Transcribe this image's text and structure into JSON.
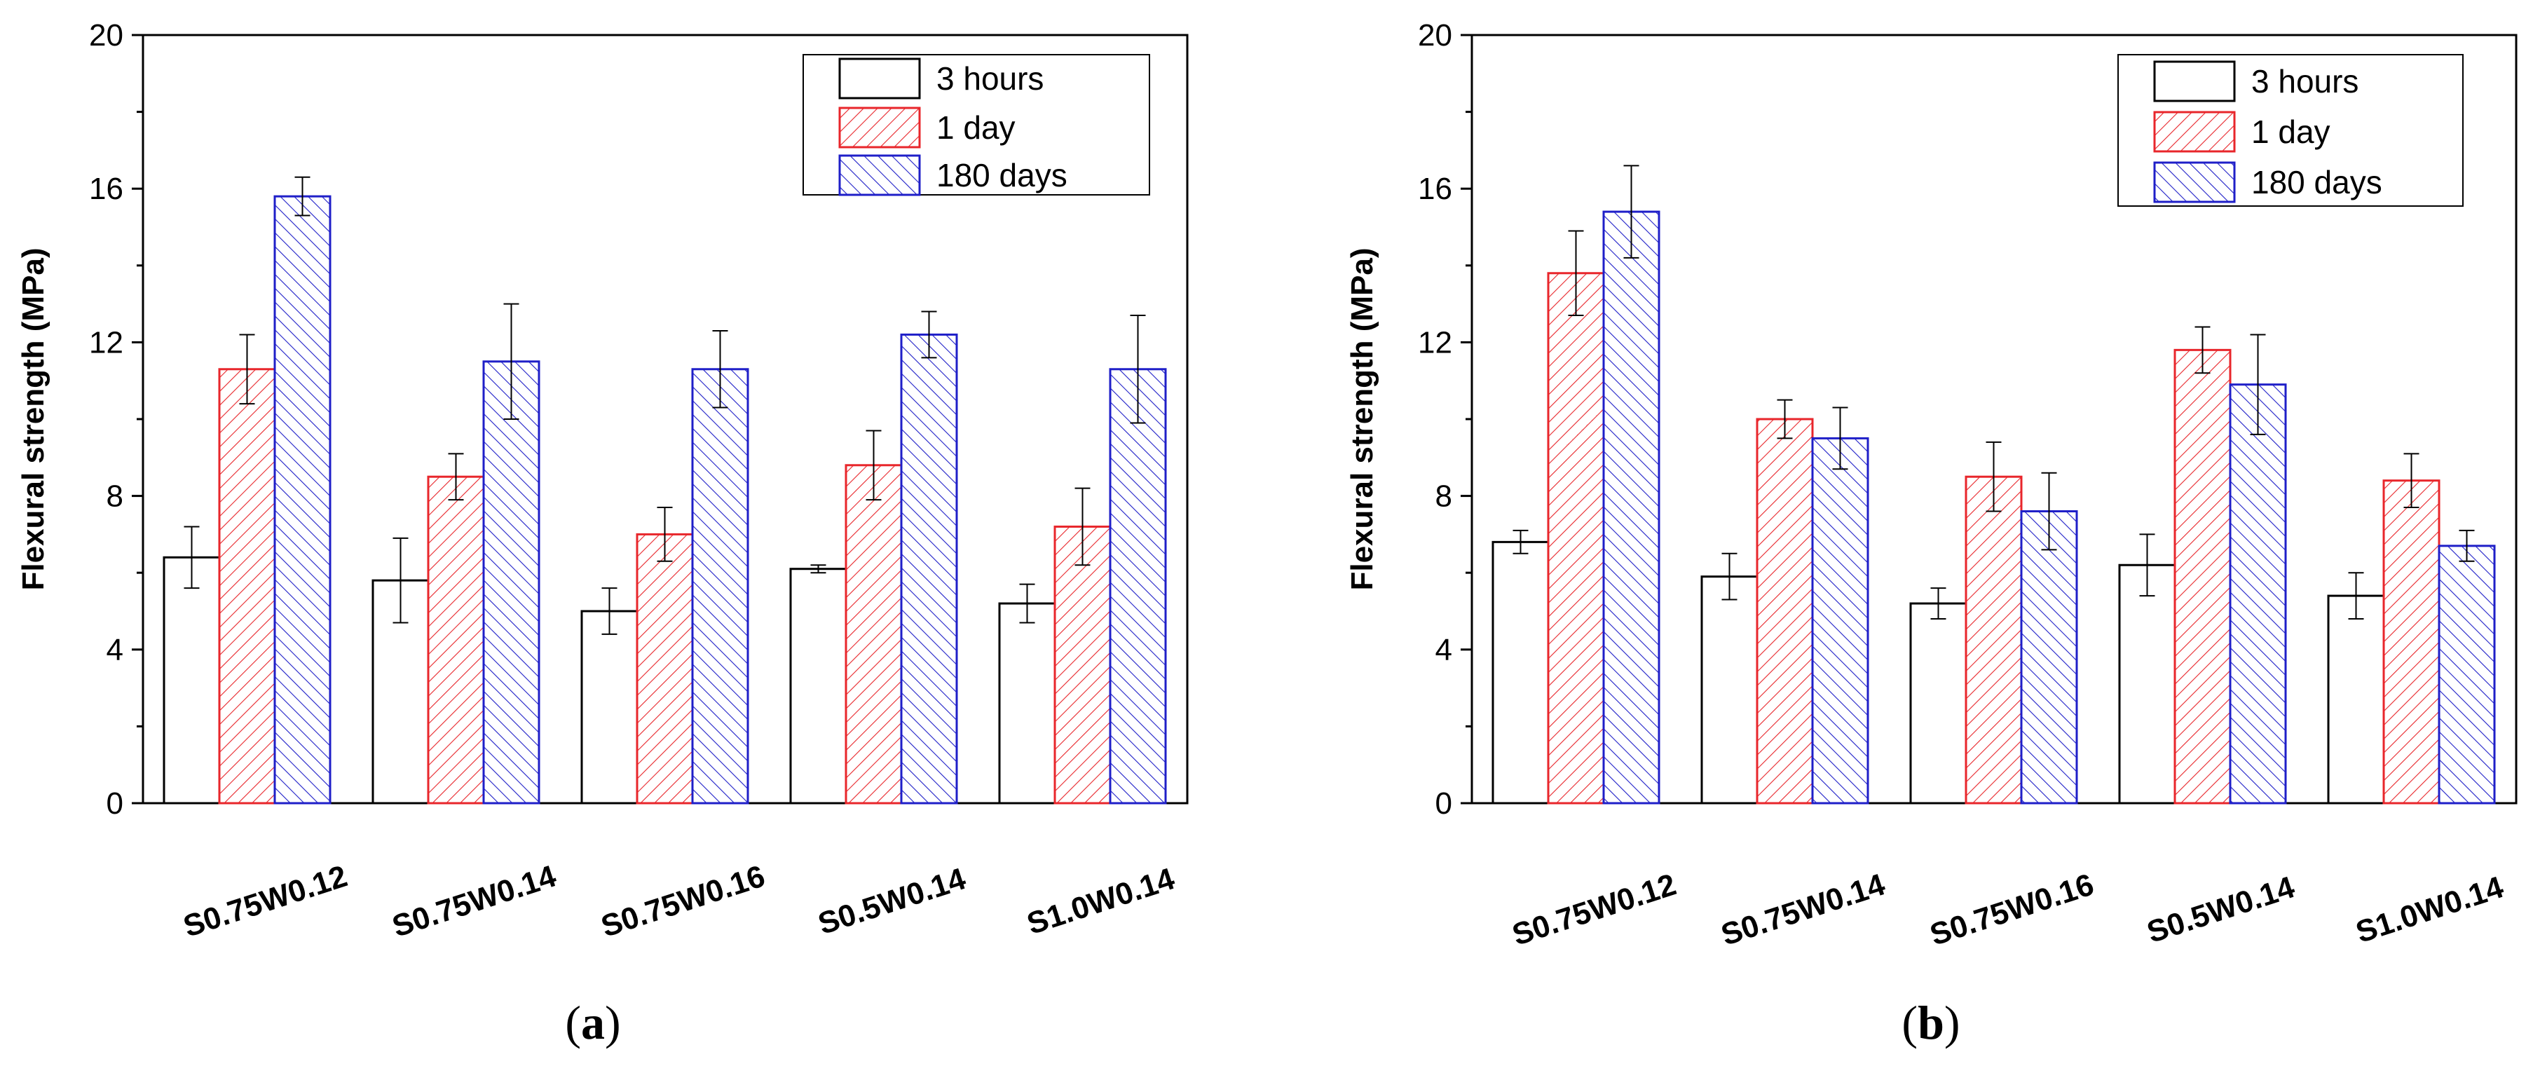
{
  "chart_data": [
    {
      "type": "bar",
      "panel": "a",
      "panel_label": "a",
      "ylabel": "Flexural strength (MPa)",
      "ylim": [
        0,
        20
      ],
      "yticks": [
        "0",
        "4",
        "8",
        "12",
        "16",
        "20"
      ],
      "categories": [
        "S0.75W0.12",
        "S0.75W0.14",
        "S0.75W0.16",
        "S0.5W0.14",
        "S1.0W0.14"
      ],
      "legend_position": "top-right",
      "series": [
        {
          "name": "3 hours",
          "color": "#000000",
          "pattern": "none",
          "values": [
            6.4,
            5.8,
            5.0,
            6.1,
            5.2
          ],
          "errors": [
            0.8,
            1.1,
            0.6,
            0.1,
            0.5
          ]
        },
        {
          "name": "1 day",
          "color": "#e8262b",
          "pattern": "forward-hatch",
          "values": [
            11.3,
            8.5,
            7.0,
            8.8,
            7.2
          ],
          "errors": [
            0.9,
            0.6,
            0.7,
            0.9,
            1.0
          ]
        },
        {
          "name": "180 days",
          "color": "#1f1fc8",
          "pattern": "back-hatch",
          "values": [
            15.8,
            11.5,
            11.3,
            12.2,
            11.3
          ],
          "errors": [
            0.5,
            1.5,
            1.0,
            0.6,
            1.4
          ]
        }
      ]
    },
    {
      "type": "bar",
      "panel": "b",
      "panel_label": "b",
      "ylabel": "Flexural strength (MPa)",
      "ylim": [
        0,
        20
      ],
      "yticks": [
        "0",
        "4",
        "8",
        "12",
        "16",
        "20"
      ],
      "categories": [
        "S0.75W0.12",
        "S0.75W0.14",
        "S0.75W0.16",
        "S0.5W0.14",
        "S1.0W0.14"
      ],
      "legend_position": "top-right",
      "series": [
        {
          "name": "3 hours",
          "color": "#000000",
          "pattern": "none",
          "values": [
            6.8,
            5.9,
            5.2,
            6.2,
            5.4
          ],
          "errors": [
            0.3,
            0.6,
            0.4,
            0.8,
            0.6
          ]
        },
        {
          "name": "1 day",
          "color": "#e8262b",
          "pattern": "forward-hatch",
          "values": [
            13.8,
            10.0,
            8.5,
            11.8,
            8.4
          ],
          "errors": [
            1.1,
            0.5,
            0.9,
            0.6,
            0.7
          ]
        },
        {
          "name": "180 days",
          "color": "#1f1fc8",
          "pattern": "back-hatch",
          "values": [
            15.4,
            9.5,
            7.6,
            10.9,
            6.7
          ],
          "errors": [
            1.2,
            0.8,
            1.0,
            1.3,
            0.4
          ]
        }
      ]
    }
  ]
}
